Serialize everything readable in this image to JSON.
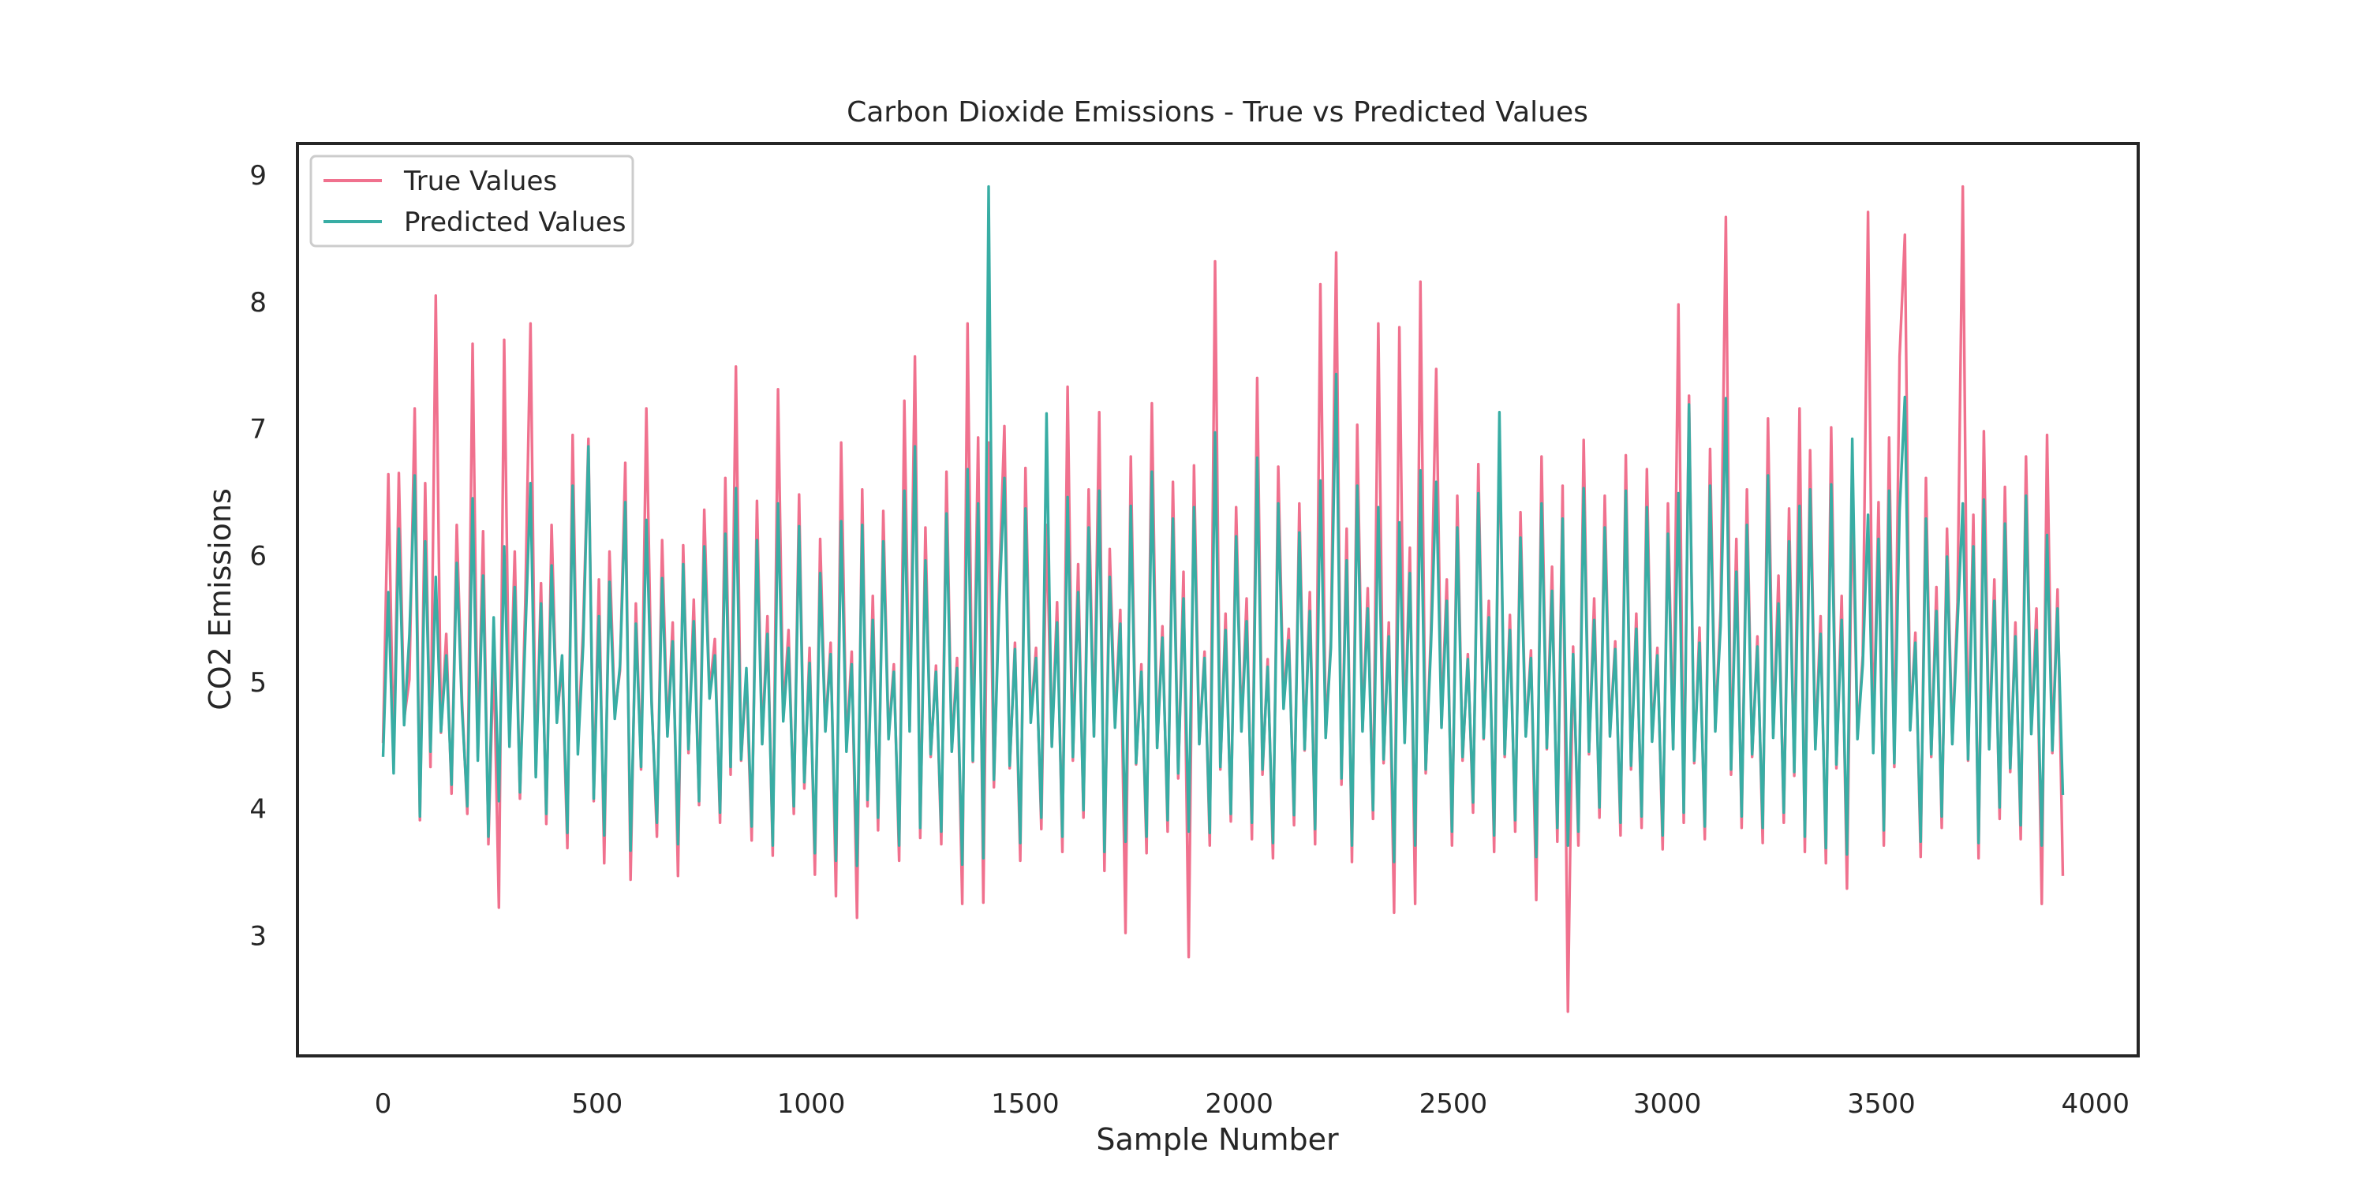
{
  "chart_data": {
    "type": "line",
    "title": "Carbon Dioxide Emissions - True vs Predicted Values",
    "xlabel": "Sample Number",
    "ylabel": "CO2 Emissions",
    "xlim": [
      -200,
      4100
    ],
    "ylim": [
      2.05,
      9.25
    ],
    "xticks": [
      0,
      500,
      1000,
      1500,
      2000,
      2500,
      3000,
      3500,
      4000
    ],
    "xtick_labels": [
      "0",
      "500",
      "1000",
      "1500",
      "2000",
      "2500",
      "3000",
      "3500",
      "4000"
    ],
    "yticks": [
      3,
      4,
      5,
      6,
      7,
      8,
      9
    ],
    "ytick_labels": [
      "3",
      "4",
      "5",
      "6",
      "7",
      "8",
      "9"
    ],
    "grid": false,
    "legend_position": "upper-left",
    "sample_count": 3925,
    "series": [
      {
        "name": "True Values",
        "color": "#f0718e",
        "values": [
          4.52,
          6.64,
          4.38,
          6.65,
          4.71,
          5.02,
          7.16,
          3.91,
          6.57,
          4.33,
          8.05,
          4.6,
          5.38,
          4.12,
          6.24,
          4.85,
          3.96,
          7.67,
          4.41,
          6.19,
          3.72,
          5.23,
          3.22,
          7.7,
          4.56,
          6.03,
          4.08,
          5.61,
          7.83,
          4.27,
          5.78,
          3.88,
          6.24,
          4.71,
          5.14,
          3.69,
          6.95,
          4.49,
          5.43,
          6.92,
          4.06,
          5.81,
          3.57,
          6.03,
          4.75,
          5.09,
          6.73,
          3.44,
          5.62,
          4.31,
          7.16,
          4.86,
          3.78,
          6.12,
          4.59,
          5.47,
          3.47,
          6.08,
          4.44,
          5.65,
          4.03,
          6.36,
          4.91,
          5.34,
          3.89,
          6.61,
          4.27,
          7.49,
          4.38,
          5.06,
          3.75,
          6.43,
          4.52,
          5.52,
          3.63,
          7.31,
          4.73,
          5.41,
          3.96,
          6.48,
          4.16,
          5.27,
          3.48,
          6.13,
          4.62,
          5.31,
          3.31,
          6.89,
          4.48,
          5.24,
          3.14,
          6.52,
          4.02,
          5.68,
          3.83,
          6.35,
          4.57,
          5.14,
          3.59,
          7.22,
          4.65,
          7.57,
          3.77,
          6.22,
          4.41,
          5.13,
          3.72,
          6.66,
          4.46,
          5.19,
          3.25,
          7.83,
          4.37,
          6.93,
          3.26,
          6.89,
          4.17,
          5.78,
          7.02,
          4.32,
          5.31,
          3.59,
          6.69,
          4.71,
          5.27,
          3.84,
          6.24,
          4.51,
          5.63,
          3.66,
          7.33,
          4.38,
          5.93,
          3.93,
          6.52,
          4.58,
          7.13,
          3.51,
          6.05,
          4.68,
          5.57,
          3.02,
          6.78,
          4.35,
          5.14,
          3.65,
          7.2,
          4.49,
          5.44,
          3.82,
          6.58,
          4.24,
          5.87,
          2.83,
          6.71,
          4.52,
          5.24,
          3.71,
          8.32,
          4.31,
          5.54,
          3.9,
          6.38,
          4.63,
          5.66,
          3.76,
          7.4,
          4.27,
          5.18,
          3.61,
          6.7,
          4.84,
          5.42,
          3.87,
          6.41,
          4.46,
          5.71,
          3.72,
          8.14,
          4.58,
          5.33,
          8.39,
          4.19,
          6.21,
          3.58,
          7.03,
          4.62,
          5.74,
          3.92,
          7.83,
          4.36,
          5.47,
          3.18,
          7.8,
          4.53,
          6.06,
          3.25,
          8.16,
          4.28,
          5.39,
          7.47,
          4.66,
          5.81,
          3.71,
          6.47,
          4.38,
          5.22,
          3.97,
          6.72,
          4.55,
          5.64,
          3.66,
          7.01,
          4.41,
          5.53,
          3.82,
          6.34,
          4.58,
          5.25,
          3.28,
          6.78,
          4.47,
          5.91,
          3.74,
          6.55,
          2.4,
          5.28,
          3.71,
          6.91,
          4.43,
          5.66,
          3.93,
          6.47,
          4.59,
          5.32,
          3.79,
          6.79,
          4.31,
          5.54,
          3.85,
          6.68,
          4.55,
          5.27,
          3.68,
          6.41,
          4.48,
          7.98,
          3.89,
          7.26,
          4.36,
          5.43,
          3.76,
          6.84,
          4.63,
          5.57,
          8.67,
          4.27,
          6.13,
          3.85,
          6.52,
          4.41,
          5.36,
          3.73,
          7.08,
          4.58,
          5.84,
          3.89,
          6.37,
          4.26,
          7.16,
          3.66,
          6.83,
          4.49,
          5.52,
          3.57,
          7.01,
          4.32,
          5.68,
          3.37,
          6.49,
          4.57,
          5.21,
          8.71,
          4.46,
          6.42,
          3.71,
          6.93,
          4.33,
          7.57,
          8.53,
          4.64,
          5.39,
          3.62,
          6.61,
          4.41,
          5.75,
          3.85,
          6.21,
          4.52,
          5.63,
          8.91,
          4.38,
          6.32,
          3.61,
          6.98,
          4.49,
          5.81,
          3.92,
          6.54,
          4.29,
          5.47,
          3.76,
          6.78,
          4.61,
          5.58,
          3.25,
          6.95,
          4.44,
          5.73,
          3.47
        ]
      },
      {
        "name": "Predicted Values",
        "color": "#38ada4",
        "values": [
          4.41,
          5.71,
          4.28,
          6.21,
          4.66,
          5.37,
          6.63,
          3.94,
          6.11,
          4.45,
          5.83,
          4.61,
          5.21,
          4.19,
          5.94,
          4.78,
          4.02,
          6.45,
          4.38,
          5.84,
          3.78,
          5.51,
          4.06,
          6.07,
          4.49,
          5.75,
          4.13,
          5.35,
          6.57,
          4.25,
          5.62,
          3.96,
          5.92,
          4.68,
          5.21,
          3.81,
          6.55,
          4.43,
          5.29,
          6.86,
          4.08,
          5.52,
          3.79,
          5.79,
          4.71,
          5.13,
          6.42,
          3.67,
          5.46,
          4.33,
          6.28,
          4.82,
          3.89,
          5.82,
          4.57,
          5.32,
          3.72,
          5.93,
          4.47,
          5.48,
          4.06,
          6.07,
          4.87,
          5.21,
          3.97,
          6.17,
          4.33,
          6.53,
          4.39,
          5.11,
          3.86,
          6.12,
          4.51,
          5.38,
          3.71,
          6.41,
          4.69,
          5.27,
          4.02,
          6.23,
          4.21,
          5.15,
          3.65,
          5.86,
          4.61,
          5.22,
          3.59,
          6.27,
          4.45,
          5.14,
          3.55,
          6.24,
          4.07,
          5.49,
          3.93,
          6.11,
          4.55,
          5.08,
          3.71,
          6.51,
          4.61,
          6.86,
          3.85,
          5.96,
          4.43,
          5.08,
          3.82,
          6.33,
          4.45,
          5.11,
          3.56,
          6.68,
          4.38,
          6.41,
          3.61,
          8.91,
          4.23,
          5.61,
          6.61,
          4.34,
          5.26,
          3.73,
          6.37,
          4.68,
          5.19,
          3.93,
          7.12,
          4.49,
          5.47,
          3.78,
          6.46,
          4.41,
          5.71,
          3.99,
          6.22,
          4.57,
          6.51,
          3.66,
          5.83,
          4.64,
          5.46,
          3.74,
          6.39,
          4.36,
          5.08,
          3.78,
          6.66,
          4.48,
          5.35,
          3.91,
          6.29,
          4.28,
          5.66,
          3.82,
          6.38,
          4.51,
          5.19,
          3.81,
          6.97,
          4.33,
          5.41,
          3.96,
          6.15,
          4.61,
          5.48,
          3.89,
          6.77,
          4.31,
          5.12,
          3.73,
          6.41,
          4.79,
          5.33,
          3.95,
          6.18,
          4.47,
          5.56,
          3.84,
          6.59,
          4.56,
          5.27,
          7.43,
          4.24,
          5.96,
          3.71,
          6.55,
          4.61,
          5.58,
          3.99,
          6.38,
          4.39,
          5.36,
          3.58,
          6.26,
          4.52,
          5.86,
          3.71,
          6.67,
          4.31,
          5.28,
          6.58,
          4.64,
          5.64,
          3.82,
          6.22,
          4.41,
          5.18,
          4.05,
          6.49,
          4.56,
          5.51,
          3.79,
          7.13,
          4.43,
          5.41,
          3.91,
          6.14,
          4.57,
          5.19,
          3.62,
          6.41,
          4.48,
          5.72,
          3.85,
          6.29,
          3.71,
          5.22,
          3.82,
          6.53,
          4.45,
          5.49,
          4.01,
          6.22,
          4.57,
          5.26,
          3.89,
          6.51,
          4.34,
          5.42,
          3.94,
          6.38,
          4.53,
          5.21,
          3.79,
          6.17,
          4.47,
          6.49,
          3.97,
          7.19,
          4.38,
          5.31,
          3.86,
          6.55,
          4.61,
          5.44,
          7.24,
          4.31,
          5.87,
          3.94,
          6.24,
          4.43,
          5.28,
          3.85,
          6.63,
          4.56,
          5.62,
          3.97,
          6.11,
          4.29,
          6.39,
          3.78,
          6.52,
          4.47,
          5.38,
          3.69,
          6.56,
          4.35,
          5.49,
          3.64,
          6.92,
          4.55,
          5.14,
          6.32,
          4.44,
          6.13,
          3.83,
          6.51,
          4.36,
          6.35,
          7.25,
          4.62,
          5.31,
          3.74,
          6.29,
          4.43,
          5.56,
          3.94,
          5.99,
          4.51,
          5.47,
          6.41,
          4.39,
          6.07,
          3.73,
          6.44,
          4.47,
          5.64,
          4.01,
          6.25,
          4.32,
          5.36,
          3.87,
          6.47,
          4.59,
          5.41,
          3.71,
          6.16,
          4.46,
          5.58,
          4.11
        ]
      }
    ]
  }
}
